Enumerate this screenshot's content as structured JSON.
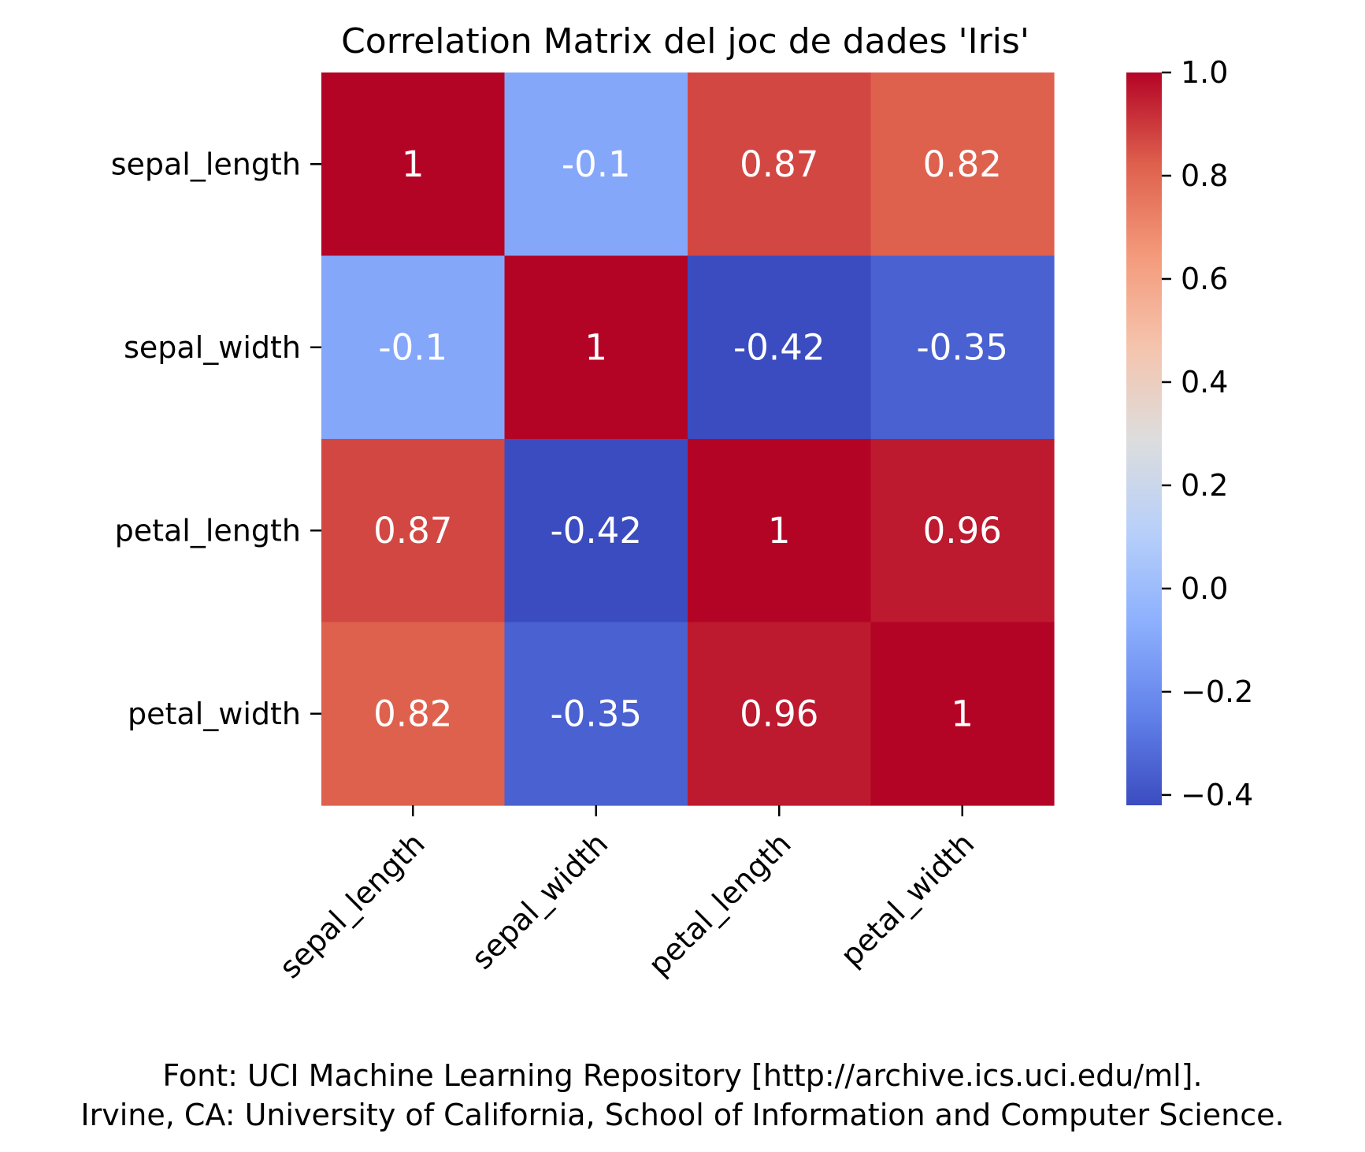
{
  "chart_data": {
    "type": "heatmap",
    "title": "Correlation Matrix del joc de dades 'Iris'",
    "rows": [
      "sepal_length",
      "sepal_width",
      "petal_length",
      "petal_width"
    ],
    "columns": [
      "sepal_length",
      "sepal_width",
      "petal_length",
      "petal_width"
    ],
    "values": [
      [
        1,
        -0.1,
        0.87,
        0.82
      ],
      [
        -0.1,
        1,
        -0.42,
        -0.35
      ],
      [
        0.87,
        -0.42,
        1,
        0.96
      ],
      [
        0.82,
        -0.35,
        0.96,
        1
      ]
    ],
    "cell_labels": [
      [
        "1",
        "-0.1",
        "0.87",
        "0.82"
      ],
      [
        "-0.1",
        "1",
        "-0.42",
        "-0.35"
      ],
      [
        "0.87",
        "-0.42",
        "1",
        "0.96"
      ],
      [
        "0.82",
        "-0.35",
        "0.96",
        "1"
      ]
    ],
    "colormap": "coolwarm",
    "colorbar": {
      "range": [
        -0.42,
        1.0
      ],
      "ticks": [
        1.0,
        0.8,
        0.6,
        0.4,
        0.2,
        0.0,
        -0.2,
        -0.4
      ],
      "tick_labels": [
        "1.0",
        "0.8",
        "0.6",
        "0.4",
        "0.2",
        "0.0",
        "−0.2",
        "−0.4"
      ]
    },
    "x_tick_rotation": 45,
    "annotations": [
      "Font: UCI Machine Learning Repository [http://archive.ics.uci.edu/ml].",
      "Irvine, CA: University of California, School of Information and Computer Science."
    ]
  }
}
